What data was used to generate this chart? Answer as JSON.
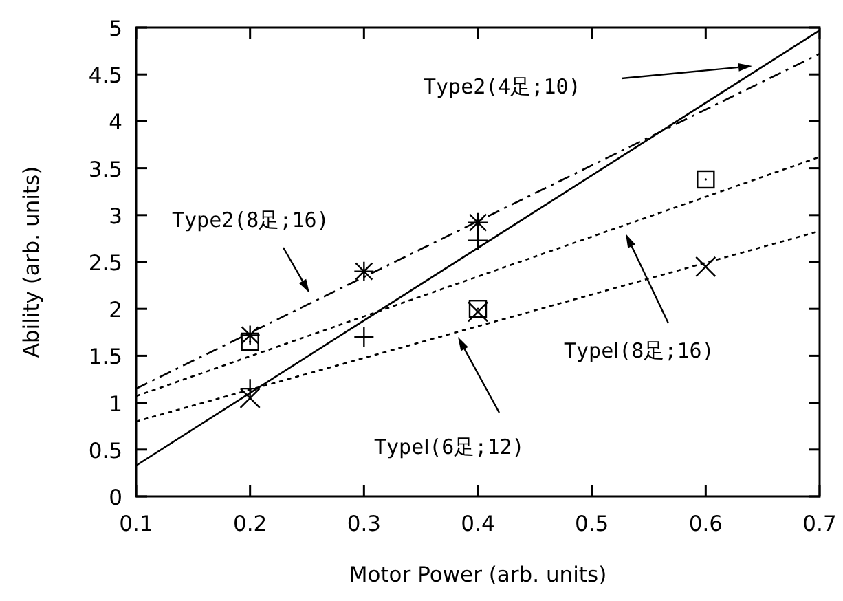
{
  "chart_data": {
    "type": "scatter",
    "xlabel": "Motor Power (arb. units)",
    "ylabel": "Ability (arb. units)",
    "xlim": [
      0.1,
      0.7
    ],
    "xticks": [
      0.1,
      0.2,
      0.3,
      0.4,
      0.5,
      0.6,
      0.7
    ],
    "ylim": [
      0,
      5
    ],
    "yticks": [
      0,
      0.5,
      1,
      1.5,
      2,
      2.5,
      3,
      3.5,
      4,
      4.5,
      5
    ],
    "grid": false,
    "series": [
      {
        "type": "line",
        "x": [
          0.1,
          0.7
        ],
        "values": [
          0.33,
          4.97
        ],
        "color": "#000000",
        "line_style": "solid"
      },
      {
        "type": "line",
        "x": [
          0.1,
          0.7
        ],
        "values": [
          1.15,
          4.72
        ],
        "color": "#000000",
        "line_style": "dashdot"
      },
      {
        "type": "line",
        "x": [
          0.1,
          0.7
        ],
        "values": [
          1.07,
          3.62
        ],
        "color": "#000000",
        "line_style": "dotted"
      },
      {
        "type": "line",
        "x": [
          0.1,
          0.7
        ],
        "values": [
          0.8,
          2.83
        ],
        "color": "#000000",
        "line_style": "dotted"
      },
      {
        "type": "scatter",
        "x": [
          0.2,
          0.3,
          0.4
        ],
        "values": [
          1.15,
          1.7,
          2.73
        ],
        "color": "#000000",
        "marker": "plus"
      },
      {
        "type": "scatter",
        "x": [
          0.2,
          0.3,
          0.4
        ],
        "values": [
          1.72,
          2.4,
          2.92
        ],
        "color": "#000000"
      },
      {
        "type": "scatter",
        "x": [
          0.2,
          0.4,
          0.6
        ],
        "values": [
          1.65,
          2.0,
          3.38
        ],
        "color": "#000000",
        "marker": "square"
      },
      {
        "type": "scatter",
        "x": [
          0.2,
          0.4,
          0.6
        ],
        "values": [
          1.05,
          1.97,
          2.45
        ],
        "color": "#000000",
        "marker": "cross"
      }
    ],
    "annotations": [
      "Type2(4足;10)",
      "Type2(8足;16)",
      "TypeⅠ(8足;16)",
      "TypeⅠ(6足;12)"
    ]
  }
}
